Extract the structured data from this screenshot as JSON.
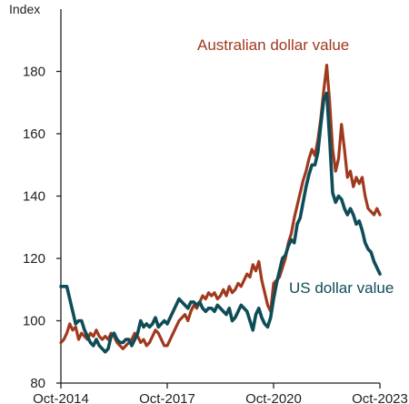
{
  "chart_data": {
    "type": "line",
    "title": "",
    "xlabel": "",
    "ylabel": "Index",
    "ylim": [
      80,
      200
    ],
    "yticks": [
      80,
      100,
      120,
      140,
      160,
      180
    ],
    "xlim": [
      "2014-10",
      "2023-10"
    ],
    "xticks": [
      "Oct-2014",
      "Oct-2017",
      "Oct-2020",
      "Oct-2023"
    ],
    "xtick_months": [
      "2014-10",
      "2017-10",
      "2020-10",
      "2023-10"
    ],
    "grid": false,
    "legend": "inline labels",
    "series": [
      {
        "name": "Australian dollar value",
        "color": "#A0391E",
        "points": [
          [
            "2014-10",
            93
          ],
          [
            "2014-11",
            94
          ],
          [
            "2014-12",
            96
          ],
          [
            "2015-01",
            99
          ],
          [
            "2015-02",
            97
          ],
          [
            "2015-03",
            98
          ],
          [
            "2015-04",
            94
          ],
          [
            "2015-05",
            96
          ],
          [
            "2015-06",
            95
          ],
          [
            "2015-07",
            94
          ],
          [
            "2015-08",
            96
          ],
          [
            "2015-09",
            95
          ],
          [
            "2015-10",
            97
          ],
          [
            "2015-11",
            95
          ],
          [
            "2015-12",
            94
          ],
          [
            "2016-01",
            95
          ],
          [
            "2016-02",
            94
          ],
          [
            "2016-03",
            96
          ],
          [
            "2016-04",
            95
          ],
          [
            "2016-05",
            93
          ],
          [
            "2016-06",
            92
          ],
          [
            "2016-07",
            91
          ],
          [
            "2016-08",
            92
          ],
          [
            "2016-09",
            93
          ],
          [
            "2016-10",
            94
          ],
          [
            "2016-11",
            96
          ],
          [
            "2016-12",
            95
          ],
          [
            "2017-01",
            93
          ],
          [
            "2017-02",
            94
          ],
          [
            "2017-03",
            92
          ],
          [
            "2017-04",
            93
          ],
          [
            "2017-05",
            95
          ],
          [
            "2017-06",
            97
          ],
          [
            "2017-07",
            96
          ],
          [
            "2017-08",
            94
          ],
          [
            "2017-09",
            92
          ],
          [
            "2017-10",
            92
          ],
          [
            "2017-11",
            94
          ],
          [
            "2017-12",
            96
          ],
          [
            "2018-01",
            98
          ],
          [
            "2018-02",
            100
          ],
          [
            "2018-03",
            101
          ],
          [
            "2018-04",
            102
          ],
          [
            "2018-05",
            100
          ],
          [
            "2018-06",
            103
          ],
          [
            "2018-07",
            105
          ],
          [
            "2018-08",
            104
          ],
          [
            "2018-09",
            106
          ],
          [
            "2018-10",
            108
          ],
          [
            "2018-11",
            107
          ],
          [
            "2018-12",
            109
          ],
          [
            "2019-01",
            108
          ],
          [
            "2019-02",
            109
          ],
          [
            "2019-03",
            107
          ],
          [
            "2019-04",
            108
          ],
          [
            "2019-05",
            110
          ],
          [
            "2019-06",
            108
          ],
          [
            "2019-07",
            111
          ],
          [
            "2019-08",
            109
          ],
          [
            "2019-09",
            110
          ],
          [
            "2019-10",
            112
          ],
          [
            "2019-11",
            111
          ],
          [
            "2019-12",
            113
          ],
          [
            "2020-01",
            115
          ],
          [
            "2020-02",
            114
          ],
          [
            "2020-03",
            118
          ],
          [
            "2020-04",
            116
          ],
          [
            "2020-05",
            119
          ],
          [
            "2020-06",
            113
          ],
          [
            "2020-07",
            109
          ],
          [
            "2020-08",
            105
          ],
          [
            "2020-09",
            103
          ],
          [
            "2020-10",
            112
          ],
          [
            "2020-11",
            113
          ],
          [
            "2020-12",
            114
          ],
          [
            "2021-01",
            117
          ],
          [
            "2021-02",
            120
          ],
          [
            "2021-03",
            125
          ],
          [
            "2021-04",
            128
          ],
          [
            "2021-05",
            133
          ],
          [
            "2021-06",
            137
          ],
          [
            "2021-07",
            141
          ],
          [
            "2021-08",
            145
          ],
          [
            "2021-09",
            148
          ],
          [
            "2021-10",
            152
          ],
          [
            "2021-11",
            155
          ],
          [
            "2021-12",
            153
          ],
          [
            "2022-01",
            158
          ],
          [
            "2022-02",
            165
          ],
          [
            "2022-03",
            174
          ],
          [
            "2022-04",
            182
          ],
          [
            "2022-05",
            170
          ],
          [
            "2022-06",
            155
          ],
          [
            "2022-07",
            148
          ],
          [
            "2022-08",
            152
          ],
          [
            "2022-09",
            163
          ],
          [
            "2022-10",
            155
          ],
          [
            "2022-11",
            146
          ],
          [
            "2022-12",
            148
          ],
          [
            "2023-01",
            143
          ],
          [
            "2023-02",
            146
          ],
          [
            "2023-03",
            144
          ],
          [
            "2023-04",
            146
          ],
          [
            "2023-05",
            140
          ],
          [
            "2023-06",
            136
          ],
          [
            "2023-07",
            135
          ],
          [
            "2023-08",
            134
          ],
          [
            "2023-09",
            136
          ],
          [
            "2023-10",
            134
          ]
        ]
      },
      {
        "name": "US dollar value",
        "color": "#0E4D57",
        "points": [
          [
            "2014-10",
            111
          ],
          [
            "2014-11",
            111
          ],
          [
            "2014-12",
            111
          ],
          [
            "2015-01",
            107
          ],
          [
            "2015-02",
            103
          ],
          [
            "2015-03",
            99
          ],
          [
            "2015-04",
            100
          ],
          [
            "2015-05",
            100
          ],
          [
            "2015-06",
            97
          ],
          [
            "2015-07",
            95
          ],
          [
            "2015-08",
            93
          ],
          [
            "2015-09",
            92
          ],
          [
            "2015-10",
            94
          ],
          [
            "2015-11",
            92
          ],
          [
            "2015-12",
            91
          ],
          [
            "2016-01",
            90
          ],
          [
            "2016-02",
            91
          ],
          [
            "2016-03",
            95
          ],
          [
            "2016-04",
            96
          ],
          [
            "2016-05",
            94
          ],
          [
            "2016-06",
            93
          ],
          [
            "2016-07",
            93
          ],
          [
            "2016-08",
            94
          ],
          [
            "2016-09",
            94
          ],
          [
            "2016-10",
            92
          ],
          [
            "2016-11",
            94
          ],
          [
            "2016-12",
            96
          ],
          [
            "2017-01",
            100
          ],
          [
            "2017-02",
            98
          ],
          [
            "2017-03",
            99
          ],
          [
            "2017-04",
            98
          ],
          [
            "2017-05",
            99
          ],
          [
            "2017-06",
            101
          ],
          [
            "2017-07",
            98
          ],
          [
            "2017-08",
            99
          ],
          [
            "2017-09",
            100
          ],
          [
            "2017-10",
            99
          ],
          [
            "2017-11",
            101
          ],
          [
            "2017-12",
            103
          ],
          [
            "2018-01",
            105
          ],
          [
            "2018-02",
            107
          ],
          [
            "2018-03",
            106
          ],
          [
            "2018-04",
            105
          ],
          [
            "2018-05",
            104
          ],
          [
            "2018-06",
            106
          ],
          [
            "2018-07",
            106
          ],
          [
            "2018-08",
            105
          ],
          [
            "2018-09",
            106
          ],
          [
            "2018-10",
            104
          ],
          [
            "2018-11",
            103
          ],
          [
            "2018-12",
            104
          ],
          [
            "2019-01",
            104
          ],
          [
            "2019-02",
            103
          ],
          [
            "2019-03",
            105
          ],
          [
            "2019-04",
            104
          ],
          [
            "2019-05",
            103
          ],
          [
            "2019-06",
            102
          ],
          [
            "2019-07",
            104
          ],
          [
            "2019-08",
            100
          ],
          [
            "2019-09",
            101
          ],
          [
            "2019-10",
            103
          ],
          [
            "2019-11",
            105
          ],
          [
            "2019-12",
            104
          ],
          [
            "2020-01",
            103
          ],
          [
            "2020-02",
            100
          ],
          [
            "2020-03",
            97
          ],
          [
            "2020-04",
            102
          ],
          [
            "2020-05",
            104
          ],
          [
            "2020-06",
            101
          ],
          [
            "2020-07",
            99
          ],
          [
            "2020-08",
            98
          ],
          [
            "2020-09",
            101
          ],
          [
            "2020-10",
            107
          ],
          [
            "2020-11",
            112
          ],
          [
            "2020-12",
            116
          ],
          [
            "2021-01",
            120
          ],
          [
            "2021-02",
            121
          ],
          [
            "2021-03",
            124
          ],
          [
            "2021-04",
            126
          ],
          [
            "2021-05",
            125
          ],
          [
            "2021-06",
            131
          ],
          [
            "2021-07",
            133
          ],
          [
            "2021-08",
            138
          ],
          [
            "2021-09",
            143
          ],
          [
            "2021-10",
            147
          ],
          [
            "2021-11",
            150
          ],
          [
            "2021-12",
            150
          ],
          [
            "2022-01",
            154
          ],
          [
            "2022-02",
            163
          ],
          [
            "2022-03",
            171
          ],
          [
            "2022-04",
            173
          ],
          [
            "2022-05",
            158
          ],
          [
            "2022-06",
            141
          ],
          [
            "2022-07",
            138
          ],
          [
            "2022-08",
            140
          ],
          [
            "2022-09",
            139
          ],
          [
            "2022-10",
            136
          ],
          [
            "2022-11",
            134
          ],
          [
            "2022-12",
            136
          ],
          [
            "2023-01",
            134
          ],
          [
            "2023-02",
            131
          ],
          [
            "2023-03",
            132
          ],
          [
            "2023-04",
            129
          ],
          [
            "2023-05",
            125
          ],
          [
            "2023-06",
            123
          ],
          [
            "2023-07",
            122
          ],
          [
            "2023-08",
            119
          ],
          [
            "2023-09",
            117
          ],
          [
            "2023-10",
            115
          ]
        ]
      }
    ]
  }
}
